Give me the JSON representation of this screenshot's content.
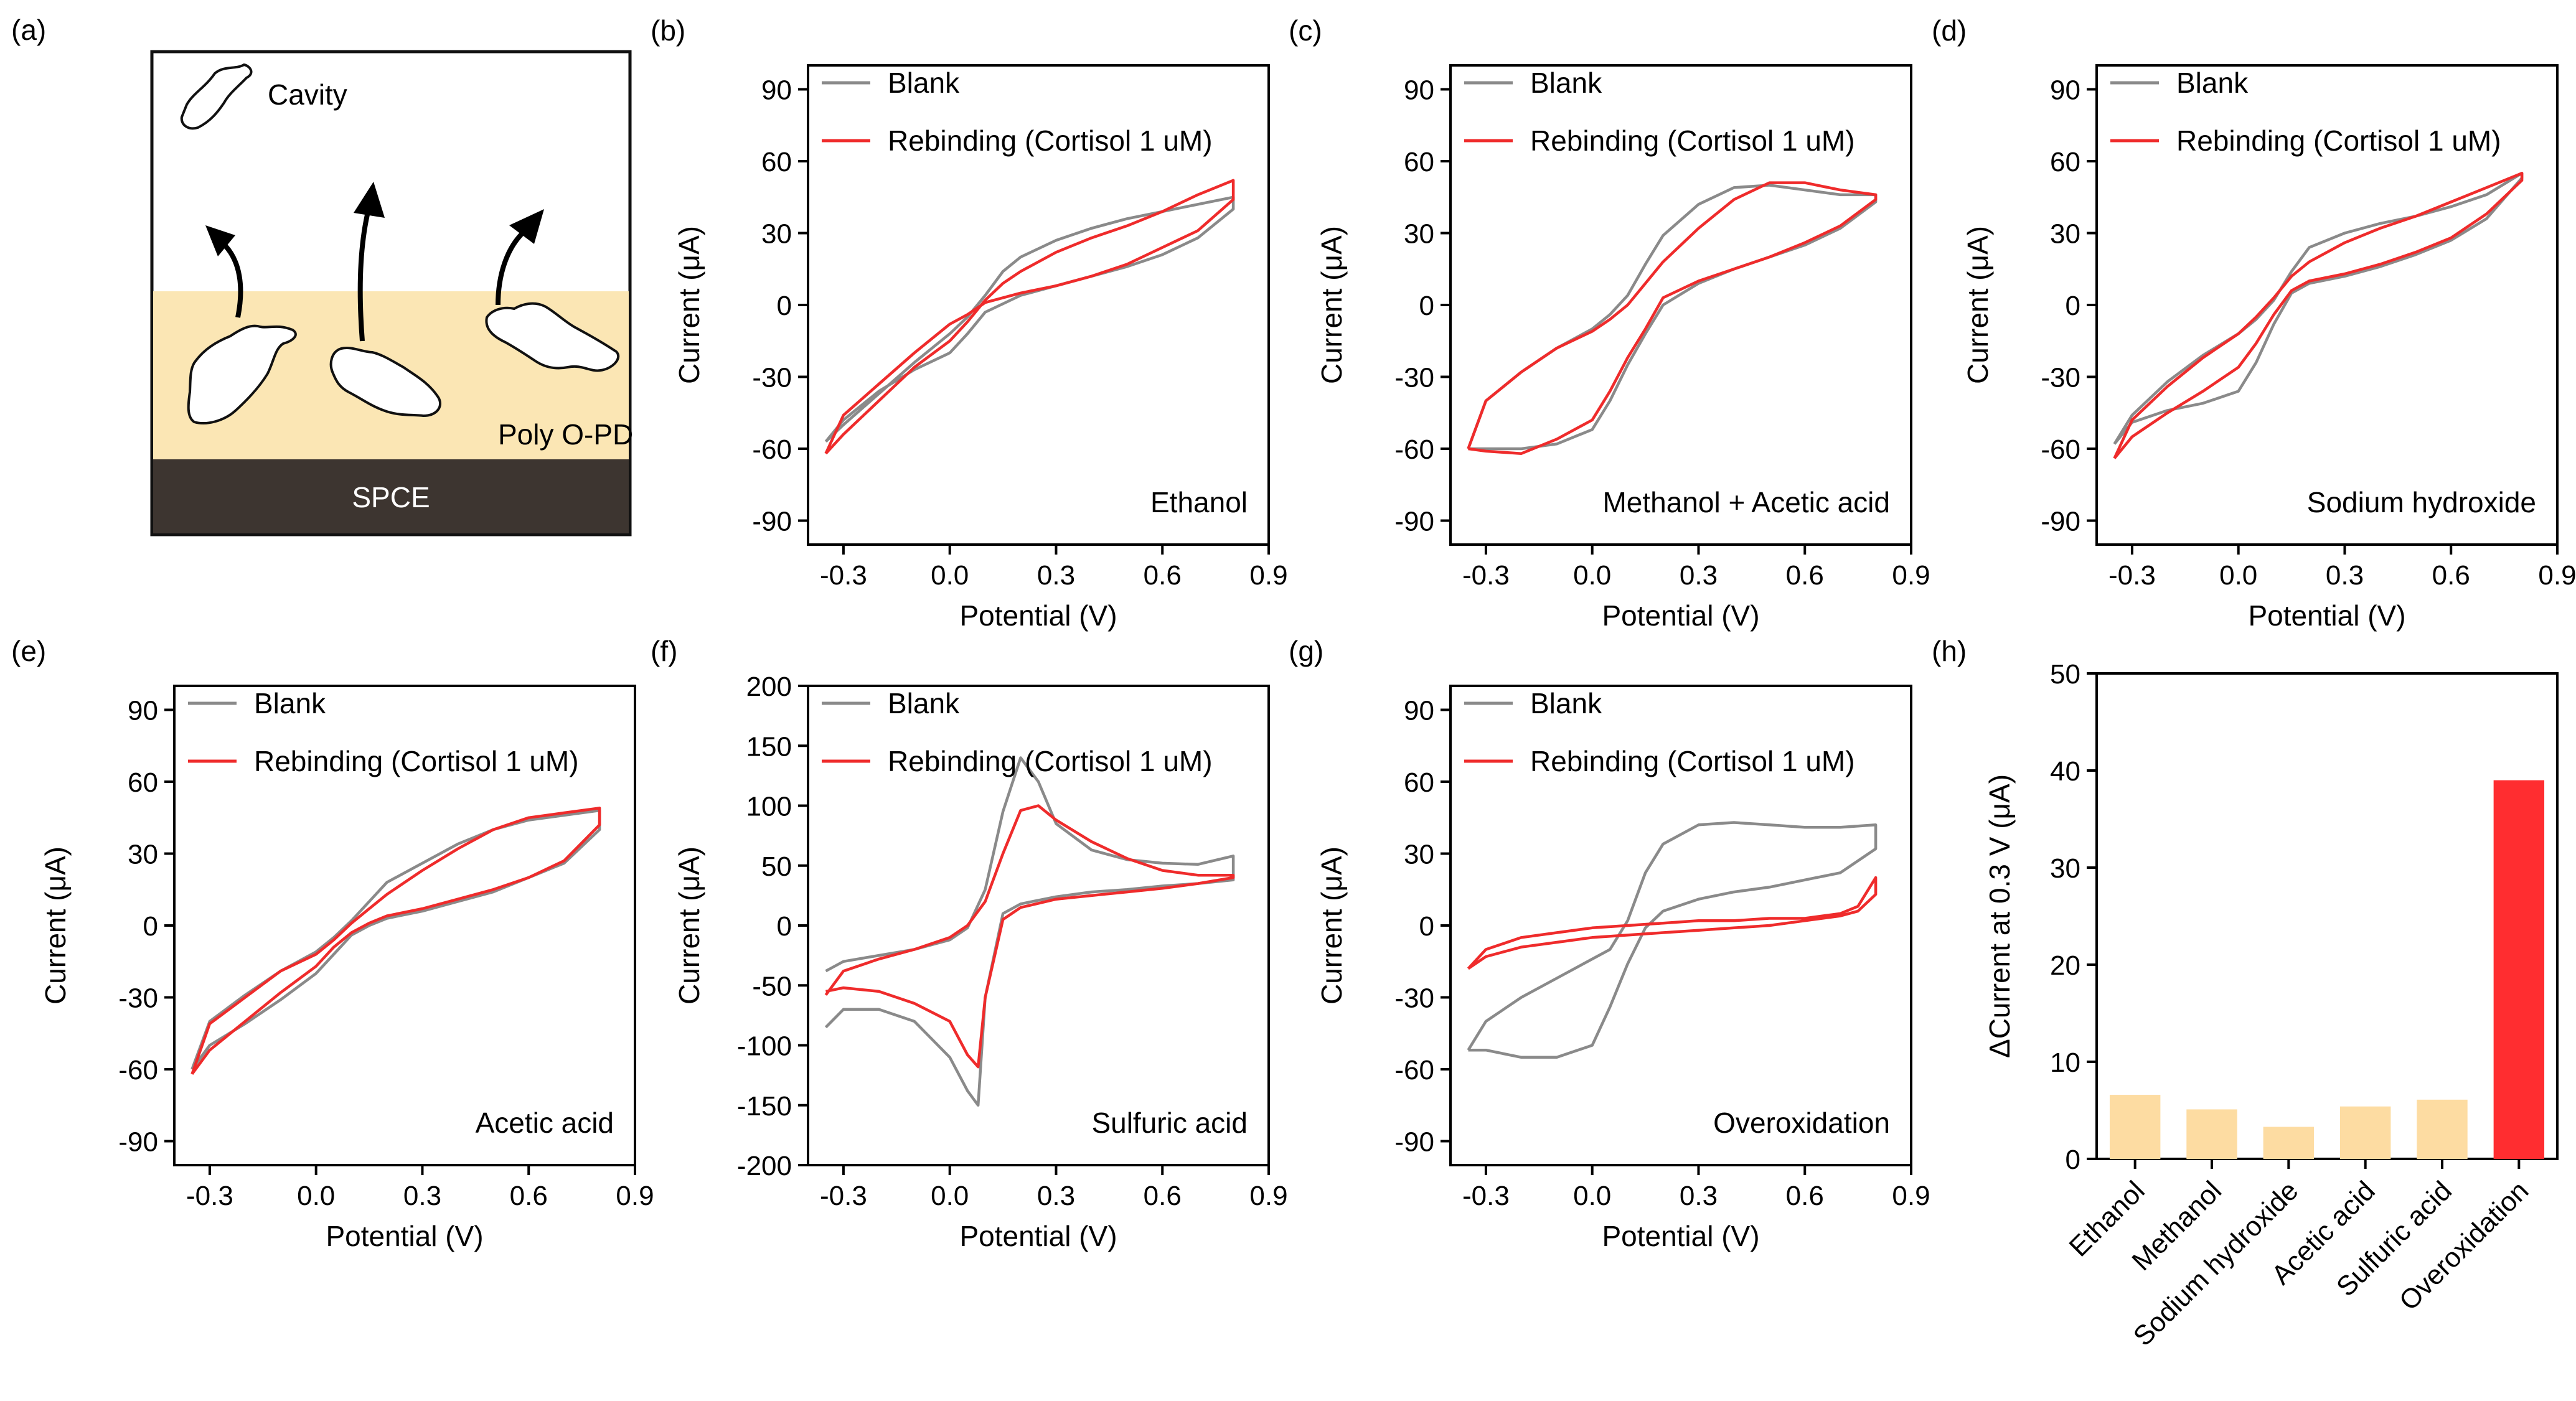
{
  "colors": {
    "blank": "#8a8a8a",
    "rebinding": "#ef2b2b",
    "bar_light": "#fddca2",
    "bar_highlight": "#ff2d30",
    "film": "#fbe6b4",
    "electrode": "#3d3530"
  },
  "schematic": {
    "label": "(a)",
    "cavity_label": "Cavity",
    "film_label": "Poly O-PD",
    "electrode_label": "SPCE"
  },
  "chart_data": [
    {
      "id": "b",
      "type": "line",
      "panel_label": "(b)",
      "annotation": "Ethanol",
      "xlabel": "Potential (V)",
      "ylabel": "Current (μA)",
      "xlim": [
        -0.4,
        0.9
      ],
      "ylim": [
        -100,
        100
      ],
      "xticks": [
        "-0.3",
        "0.0",
        "0.3",
        "0.6",
        "0.9"
      ],
      "yticks": [
        "-90",
        "-60",
        "-30",
        "0",
        "30",
        "60",
        "90"
      ],
      "legend_position": "top-left",
      "series": [
        {
          "name": "Blank",
          "color": "#8a8a8a",
          "x": [
            -0.35,
            -0.3,
            -0.2,
            -0.1,
            0,
            0.05,
            0.1,
            0.15,
            0.2,
            0.3,
            0.4,
            0.5,
            0.6,
            0.7,
            0.8,
            0.8,
            0.7,
            0.6,
            0.5,
            0.4,
            0.3,
            0.2,
            0.1,
            0.05,
            0,
            -0.1,
            -0.2,
            -0.3,
            -0.35
          ],
          "y": [
            -57,
            -50,
            -37,
            -24,
            -12,
            -5,
            4,
            14,
            20,
            27,
            32,
            36,
            39,
            42,
            45,
            40,
            28,
            21,
            16,
            12,
            8,
            4,
            -3,
            -12,
            -20,
            -27,
            -36,
            -48,
            -57
          ]
        },
        {
          "name": "Rebinding (Cortisol 1 uM)",
          "color": "#ef2b2b",
          "x": [
            -0.35,
            -0.3,
            -0.2,
            -0.1,
            0,
            0.05,
            0.1,
            0.15,
            0.2,
            0.3,
            0.4,
            0.5,
            0.6,
            0.7,
            0.8,
            0.8,
            0.7,
            0.6,
            0.5,
            0.4,
            0.3,
            0.2,
            0.1,
            0.05,
            0,
            -0.1,
            -0.2,
            -0.3,
            -0.35
          ],
          "y": [
            -62,
            -54,
            -40,
            -26,
            -15,
            -7,
            2,
            9,
            14,
            22,
            28,
            33,
            39,
            46,
            52,
            44,
            31,
            24,
            17,
            12,
            8,
            5,
            1,
            -4,
            -8,
            -20,
            -33,
            -46,
            -62
          ]
        }
      ]
    },
    {
      "id": "c",
      "type": "line",
      "panel_label": "(c)",
      "annotation": "Methanol + Acetic acid",
      "xlabel": "Potential (V)",
      "ylabel": "Current (μA)",
      "xlim": [
        -0.4,
        0.9
      ],
      "ylim": [
        -100,
        100
      ],
      "xticks": [
        "-0.3",
        "0.0",
        "0.3",
        "0.6",
        "0.9"
      ],
      "yticks": [
        "-90",
        "-60",
        "-30",
        "0",
        "30",
        "60",
        "90"
      ],
      "legend_position": "top-left",
      "series": [
        {
          "name": "Blank",
          "color": "#8a8a8a",
          "x": [
            -0.35,
            -0.3,
            -0.2,
            -0.1,
            0,
            0.05,
            0.1,
            0.15,
            0.2,
            0.3,
            0.4,
            0.5,
            0.6,
            0.7,
            0.8,
            0.8,
            0.7,
            0.6,
            0.5,
            0.4,
            0.3,
            0.2,
            0.15,
            0.1,
            0.05,
            0,
            -0.1,
            -0.2,
            -0.3,
            -0.35
          ],
          "y": [
            -60,
            -40,
            -28,
            -18,
            -10,
            -4,
            4,
            17,
            29,
            42,
            49,
            50,
            48,
            46,
            46,
            43,
            32,
            25,
            20,
            15,
            9,
            0,
            -12,
            -25,
            -40,
            -52,
            -58,
            -60,
            -60,
            -60
          ]
        },
        {
          "name": "Rebinding (Cortisol 1 uM)",
          "color": "#ef2b2b",
          "x": [
            -0.35,
            -0.3,
            -0.2,
            -0.1,
            0,
            0.05,
            0.1,
            0.15,
            0.2,
            0.3,
            0.4,
            0.5,
            0.6,
            0.7,
            0.8,
            0.8,
            0.7,
            0.6,
            0.5,
            0.4,
            0.3,
            0.2,
            0.15,
            0.1,
            0.05,
            0,
            -0.1,
            -0.2,
            -0.3,
            -0.35
          ],
          "y": [
            -60,
            -40,
            -28,
            -18,
            -11,
            -6,
            0,
            9,
            18,
            32,
            44,
            51,
            51,
            48,
            46,
            44,
            33,
            26,
            20,
            15,
            10,
            3,
            -10,
            -22,
            -36,
            -48,
            -56,
            -62,
            -61,
            -60
          ]
        }
      ]
    },
    {
      "id": "d",
      "type": "line",
      "panel_label": "(d)",
      "annotation": "Sodium hydroxide",
      "xlabel": "Potential (V)",
      "ylabel": "Current (μA)",
      "xlim": [
        -0.4,
        0.9
      ],
      "ylim": [
        -100,
        100
      ],
      "xticks": [
        "-0.3",
        "0.0",
        "0.3",
        "0.6",
        "0.9"
      ],
      "yticks": [
        "-90",
        "-60",
        "-30",
        "0",
        "30",
        "60",
        "90"
      ],
      "legend_position": "top-left",
      "series": [
        {
          "name": "Blank",
          "color": "#8a8a8a",
          "x": [
            -0.35,
            -0.3,
            -0.2,
            -0.1,
            0,
            0.05,
            0.1,
            0.15,
            0.2,
            0.3,
            0.4,
            0.5,
            0.6,
            0.7,
            0.8,
            0.8,
            0.7,
            0.6,
            0.5,
            0.4,
            0.3,
            0.2,
            0.15,
            0.1,
            0.05,
            0,
            -0.1,
            -0.2,
            -0.3,
            -0.35
          ],
          "y": [
            -58,
            -46,
            -32,
            -21,
            -12,
            -6,
            2,
            14,
            24,
            30,
            34,
            37,
            41,
            46,
            55,
            53,
            36,
            27,
            21,
            16,
            12,
            9,
            5,
            -8,
            -24,
            -36,
            -41,
            -44,
            -49,
            -58
          ]
        },
        {
          "name": "Rebinding (Cortisol 1 uM)",
          "color": "#ef2b2b",
          "x": [
            -0.35,
            -0.3,
            -0.2,
            -0.1,
            0,
            0.05,
            0.1,
            0.15,
            0.2,
            0.3,
            0.4,
            0.5,
            0.6,
            0.7,
            0.8,
            0.8,
            0.7,
            0.6,
            0.5,
            0.4,
            0.3,
            0.2,
            0.15,
            0.1,
            0.05,
            0,
            -0.1,
            -0.2,
            -0.3,
            -0.35
          ],
          "y": [
            -64,
            -48,
            -34,
            -22,
            -12,
            -5,
            3,
            12,
            18,
            26,
            32,
            37,
            43,
            49,
            55,
            52,
            38,
            28,
            22,
            17,
            13,
            10,
            6,
            -4,
            -16,
            -26,
            -36,
            -45,
            -55,
            -64
          ]
        }
      ]
    },
    {
      "id": "e",
      "type": "line",
      "panel_label": "(e)",
      "annotation": "Acetic acid",
      "xlabel": "Potential (V)",
      "ylabel": "Current (μA)",
      "xlim": [
        -0.4,
        0.9
      ],
      "ylim": [
        -100,
        100
      ],
      "xticks": [
        "-0.3",
        "0.0",
        "0.3",
        "0.6",
        "0.9"
      ],
      "yticks": [
        "-90",
        "-60",
        "-30",
        "0",
        "30",
        "60",
        "90"
      ],
      "legend_position": "top-left",
      "series": [
        {
          "name": "Blank",
          "color": "#8a8a8a",
          "x": [
            -0.35,
            -0.3,
            -0.2,
            -0.1,
            0,
            0.05,
            0.1,
            0.15,
            0.2,
            0.3,
            0.4,
            0.5,
            0.6,
            0.7,
            0.8,
            0.8,
            0.7,
            0.6,
            0.5,
            0.4,
            0.3,
            0.2,
            0.15,
            0.1,
            0.05,
            0,
            -0.1,
            -0.2,
            -0.3,
            -0.35
          ],
          "y": [
            -60,
            -40,
            -29,
            -19,
            -11,
            -5,
            2,
            10,
            18,
            26,
            34,
            40,
            44,
            46,
            48,
            40,
            26,
            20,
            14,
            10,
            6,
            3,
            0,
            -4,
            -12,
            -20,
            -31,
            -41,
            -50,
            -60
          ]
        },
        {
          "name": "Rebinding (Cortisol 1 uM)",
          "color": "#ef2b2b",
          "x": [
            -0.35,
            -0.3,
            -0.2,
            -0.1,
            0,
            0.05,
            0.1,
            0.15,
            0.2,
            0.3,
            0.4,
            0.5,
            0.6,
            0.7,
            0.8,
            0.8,
            0.7,
            0.6,
            0.5,
            0.4,
            0.3,
            0.2,
            0.15,
            0.1,
            0.05,
            0,
            -0.1,
            -0.2,
            -0.3,
            -0.35
          ],
          "y": [
            -62,
            -41,
            -30,
            -19,
            -12,
            -6,
            1,
            7,
            13,
            23,
            32,
            40,
            45,
            47,
            49,
            42,
            27,
            20,
            15,
            11,
            7,
            4,
            1,
            -3,
            -9,
            -17,
            -28,
            -40,
            -52,
            -62
          ]
        }
      ]
    },
    {
      "id": "f",
      "type": "line",
      "panel_label": "(f)",
      "annotation": "Sulfuric acid",
      "xlabel": "Potential (V)",
      "ylabel": "Current (μA)",
      "xlim": [
        -0.4,
        0.9
      ],
      "ylim": [
        -200,
        200
      ],
      "xticks": [
        "-0.3",
        "0.0",
        "0.3",
        "0.6",
        "0.9"
      ],
      "yticks": [
        "-200",
        "-150",
        "-100",
        "-50",
        "0",
        "50",
        "100",
        "150",
        "200"
      ],
      "legend_position": "top-left",
      "series": [
        {
          "name": "Blank",
          "color": "#8a8a8a",
          "x": [
            -0.35,
            -0.3,
            -0.2,
            -0.1,
            0,
            0.05,
            0.1,
            0.15,
            0.2,
            0.25,
            0.3,
            0.4,
            0.5,
            0.6,
            0.7,
            0.8,
            0.8,
            0.7,
            0.6,
            0.5,
            0.4,
            0.3,
            0.2,
            0.15,
            0.1,
            0.08,
            0.05,
            0,
            -0.1,
            -0.2,
            -0.3,
            -0.35
          ],
          "y": [
            -38,
            -30,
            -25,
            -20,
            -12,
            -2,
            30,
            95,
            140,
            120,
            85,
            63,
            55,
            52,
            51,
            58,
            38,
            35,
            33,
            30,
            28,
            24,
            18,
            10,
            -60,
            -150,
            -138,
            -110,
            -80,
            -70,
            -70,
            -85
          ]
        },
        {
          "name": "Rebinding (Cortisol 1 uM)",
          "color": "#ef2b2b",
          "x": [
            -0.35,
            -0.3,
            -0.2,
            -0.1,
            0,
            0.05,
            0.1,
            0.15,
            0.2,
            0.25,
            0.3,
            0.4,
            0.5,
            0.6,
            0.7,
            0.8,
            0.8,
            0.7,
            0.6,
            0.5,
            0.4,
            0.3,
            0.2,
            0.15,
            0.1,
            0.08,
            0.05,
            0,
            -0.1,
            -0.2,
            -0.3,
            -0.35
          ],
          "y": [
            -58,
            -38,
            -28,
            -20,
            -10,
            0,
            20,
            60,
            96,
            100,
            88,
            70,
            56,
            46,
            42,
            42,
            40,
            35,
            31,
            28,
            25,
            22,
            15,
            5,
            -60,
            -118,
            -108,
            -80,
            -65,
            -55,
            -52,
            -55
          ]
        }
      ]
    },
    {
      "id": "g",
      "type": "line",
      "panel_label": "(g)",
      "annotation": "Overoxidation",
      "xlabel": "Potential (V)",
      "ylabel": "Current (μA)",
      "xlim": [
        -0.4,
        0.9
      ],
      "ylim": [
        -100,
        100
      ],
      "xticks": [
        "-0.3",
        "0.0",
        "0.3",
        "0.6",
        "0.9"
      ],
      "yticks": [
        "-90",
        "-60",
        "-30",
        "0",
        "30",
        "60",
        "90"
      ],
      "legend_position": "top-left",
      "series": [
        {
          "name": "Blank",
          "color": "#8a8a8a",
          "x": [
            -0.35,
            -0.3,
            -0.2,
            -0.1,
            0,
            0.05,
            0.1,
            0.15,
            0.2,
            0.3,
            0.4,
            0.5,
            0.6,
            0.7,
            0.8,
            0.8,
            0.7,
            0.6,
            0.5,
            0.4,
            0.3,
            0.2,
            0.15,
            0.1,
            0.05,
            0,
            -0.1,
            -0.2,
            -0.3,
            -0.35
          ],
          "y": [
            -52,
            -40,
            -30,
            -22,
            -14,
            -10,
            2,
            22,
            34,
            42,
            43,
            42,
            41,
            41,
            42,
            32,
            22,
            19,
            16,
            14,
            11,
            6,
            -1,
            -16,
            -34,
            -50,
            -55,
            -55,
            -52,
            -52
          ]
        },
        {
          "name": "Rebinding (Cortisol 1 uM)",
          "color": "#ef2b2b",
          "x": [
            -0.35,
            -0.3,
            -0.2,
            -0.1,
            0,
            0.1,
            0.2,
            0.3,
            0.4,
            0.5,
            0.6,
            0.7,
            0.75,
            0.8,
            0.8,
            0.75,
            0.7,
            0.6,
            0.5,
            0.4,
            0.3,
            0.2,
            0.1,
            0,
            -0.1,
            -0.2,
            -0.3,
            -0.35
          ],
          "y": [
            -18,
            -10,
            -5,
            -3,
            -1,
            0,
            1,
            2,
            2,
            3,
            3,
            5,
            8,
            20,
            13,
            6,
            4,
            2,
            0,
            -1,
            -2,
            -3,
            -4,
            -5,
            -7,
            -9,
            -13,
            -18
          ]
        }
      ]
    },
    {
      "id": "h",
      "type": "bar",
      "panel_label": "(h)",
      "ylabel": "ΔCurrent at 0.3 V (μA)",
      "ylim": [
        0,
        50
      ],
      "yticks": [
        "0",
        "10",
        "20",
        "30",
        "40",
        "50"
      ],
      "categories": [
        "Ethanol",
        "Methanol",
        "Sodium hydroxide",
        "Acetic acid",
        "Sulfuric acid",
        "Overoxidation"
      ],
      "values": [
        6.6,
        5.1,
        3.3,
        5.4,
        6.1,
        39
      ],
      "colors": [
        "#fddca2",
        "#fddca2",
        "#fddca2",
        "#fddca2",
        "#fddca2",
        "#ff2d30"
      ]
    }
  ]
}
